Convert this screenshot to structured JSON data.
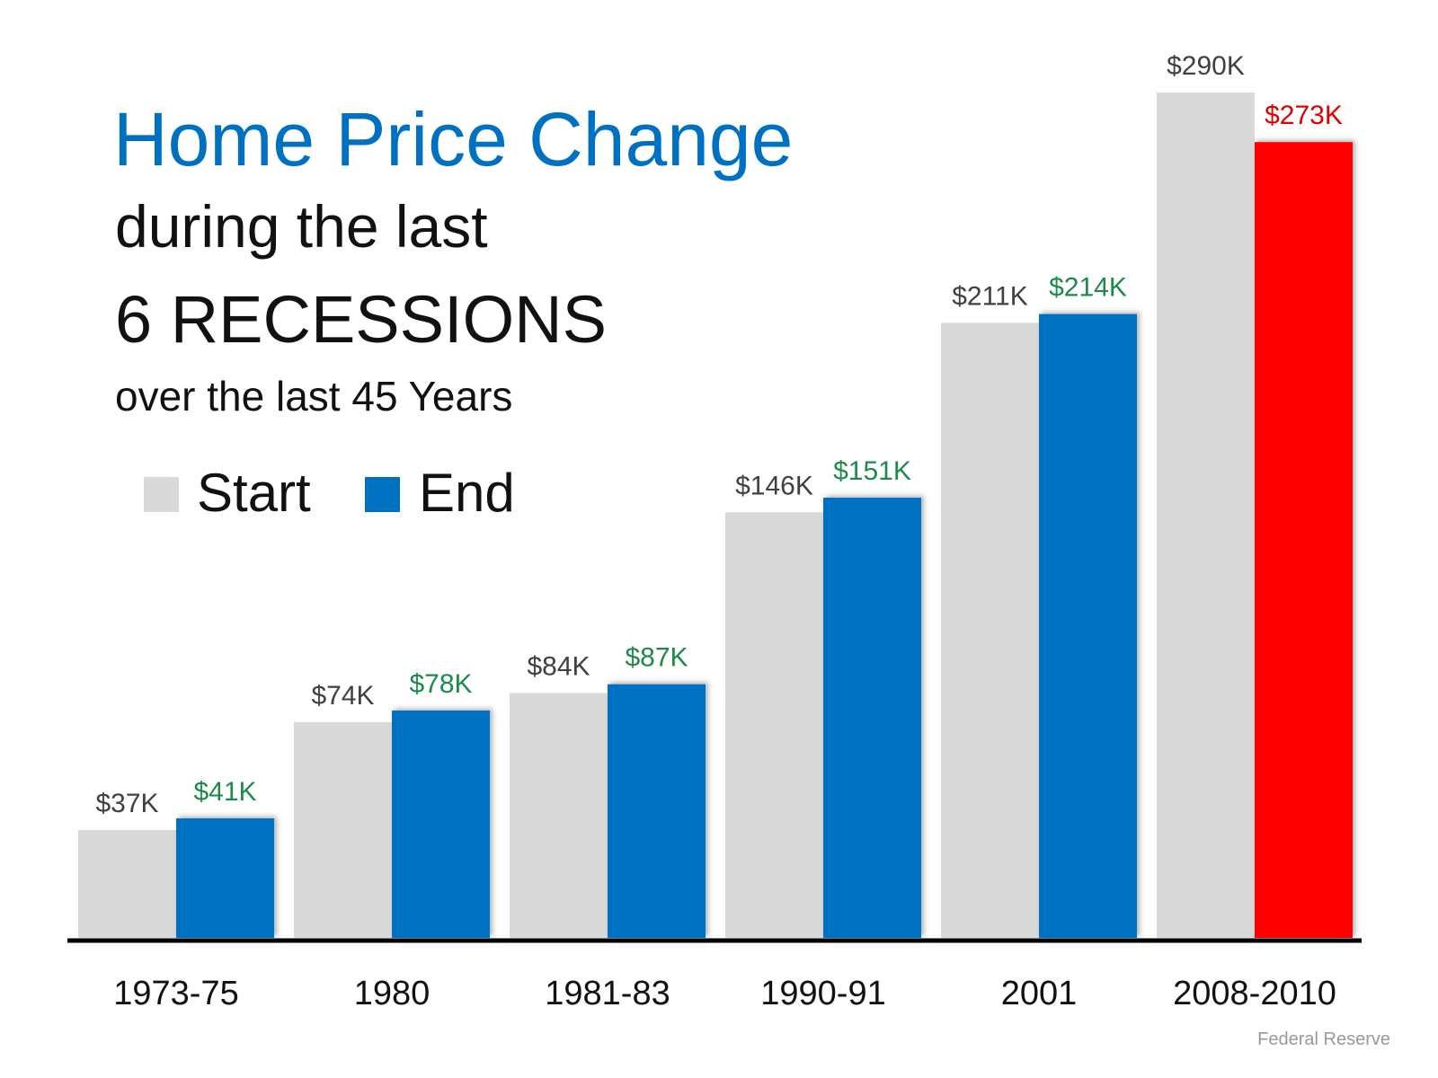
{
  "chart_data": {
    "type": "bar",
    "title": "Home Price Change",
    "subtitle": "during the last",
    "heading": "6 RECESSIONS",
    "note": "over the last 45 Years",
    "source": "Federal Reserve",
    "categories": [
      "1973-75",
      "1980",
      "1981-83",
      "1990-91",
      "2001",
      "2008-2010"
    ],
    "series": [
      {
        "name": "Start",
        "color": "#d9d9d9",
        "label_color": "#404040",
        "values": [
          37,
          74,
          84,
          146,
          211,
          290
        ],
        "value_labels": [
          "$37K",
          "$74K",
          "$84K",
          "$146K",
          "$211K",
          "$290K"
        ]
      },
      {
        "name": "End",
        "color": "#0070c0",
        "colors": [
          "#0070c0",
          "#0070c0",
          "#0070c0",
          "#0070c0",
          "#0070c0",
          "#ff0000"
        ],
        "label_colors": [
          "#1e8a4a",
          "#1e8a4a",
          "#1e8a4a",
          "#1e8a4a",
          "#1e8a4a",
          "#e00000"
        ],
        "values": [
          41,
          78,
          87,
          151,
          214,
          273
        ],
        "value_labels": [
          "$41K",
          "$78K",
          "$87K",
          "$151K",
          "$214K",
          "$273K"
        ]
      }
    ]
  }
}
